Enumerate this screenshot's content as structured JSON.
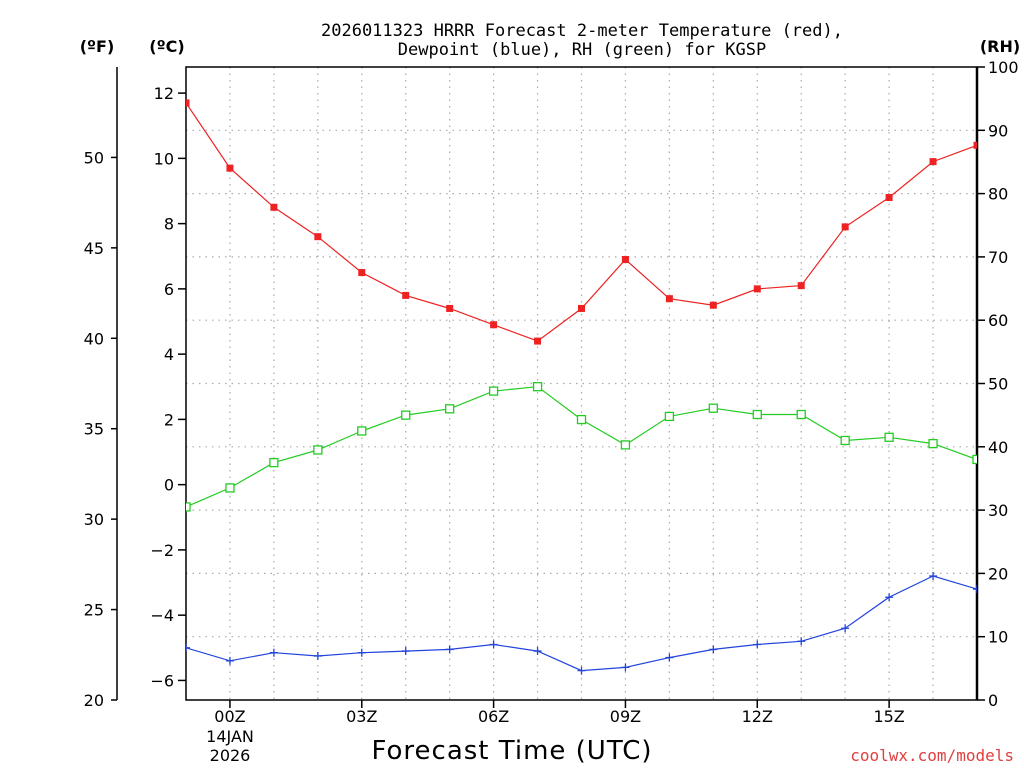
{
  "chart_data": {
    "type": "line",
    "title_line1": "2026011323 HRRR Forecast 2-meter Temperature (red),",
    "title_line2": "Dewpoint (blue), RH (green) for KGSP",
    "xlabel": "Forecast Time (UTC)",
    "credit": "coolwx.com/models",
    "left_unit_f": "(ºF)",
    "left_unit_c": "(ºC)",
    "right_unit": "(RH)",
    "x_date_line1": "14JAN",
    "x_date_line2": "2026",
    "x_hours": [
      -1,
      0,
      1,
      2,
      3,
      4,
      5,
      6,
      7,
      8,
      9,
      10,
      11,
      12,
      13,
      14,
      15,
      16,
      17
    ],
    "x_ticks": [
      {
        "hour": 0,
        "label": "00Z"
      },
      {
        "hour": 3,
        "label": "03Z"
      },
      {
        "hour": 6,
        "label": "06Z"
      },
      {
        "hour": 9,
        "label": "09Z"
      },
      {
        "hour": 12,
        "label": "12Z"
      },
      {
        "hour": 15,
        "label": "15Z"
      }
    ],
    "celsius_axis": {
      "range": [
        -6.6,
        12.8
      ],
      "ticks": [
        -6,
        -4,
        -2,
        0,
        2,
        4,
        6,
        8,
        10,
        12
      ]
    },
    "fahrenheit_axis": {
      "range": [
        20,
        55
      ],
      "ticks": [
        20,
        25,
        30,
        35,
        40,
        45,
        50
      ]
    },
    "rh_axis": {
      "range": [
        0,
        100
      ],
      "ticks": [
        0,
        10,
        20,
        30,
        40,
        50,
        60,
        70,
        80,
        90,
        100
      ]
    },
    "series": [
      {
        "name": "Temperature",
        "color": "#ee2222",
        "marker": "filled-square",
        "axis": "celsius",
        "values": [
          11.7,
          9.7,
          8.5,
          7.6,
          6.5,
          5.8,
          5.4,
          4.9,
          4.4,
          5.4,
          6.9,
          5.7,
          5.5,
          6.0,
          6.1,
          7.9,
          8.8,
          9.9,
          10.4
        ]
      },
      {
        "name": "Dewpoint",
        "color": "#2244dd",
        "marker": "plus",
        "axis": "celsius",
        "values": [
          -5.0,
          -5.4,
          -5.15,
          -5.25,
          -5.15,
          -5.1,
          -5.05,
          -4.9,
          -5.1,
          -5.7,
          -5.6,
          -5.3,
          -5.05,
          -4.9,
          -4.8,
          -4.4,
          -3.45,
          -2.8,
          -3.2
        ]
      },
      {
        "name": "RH",
        "color": "#22cc22",
        "marker": "open-square",
        "axis": "rh",
        "values": [
          30.5,
          33.5,
          37.5,
          39.5,
          42.5,
          45,
          46,
          48.8,
          49.5,
          44.3,
          40.3,
          44.8,
          46.1,
          45.1,
          45.1,
          41.0,
          41.5,
          40.5,
          38.0
        ]
      }
    ]
  }
}
